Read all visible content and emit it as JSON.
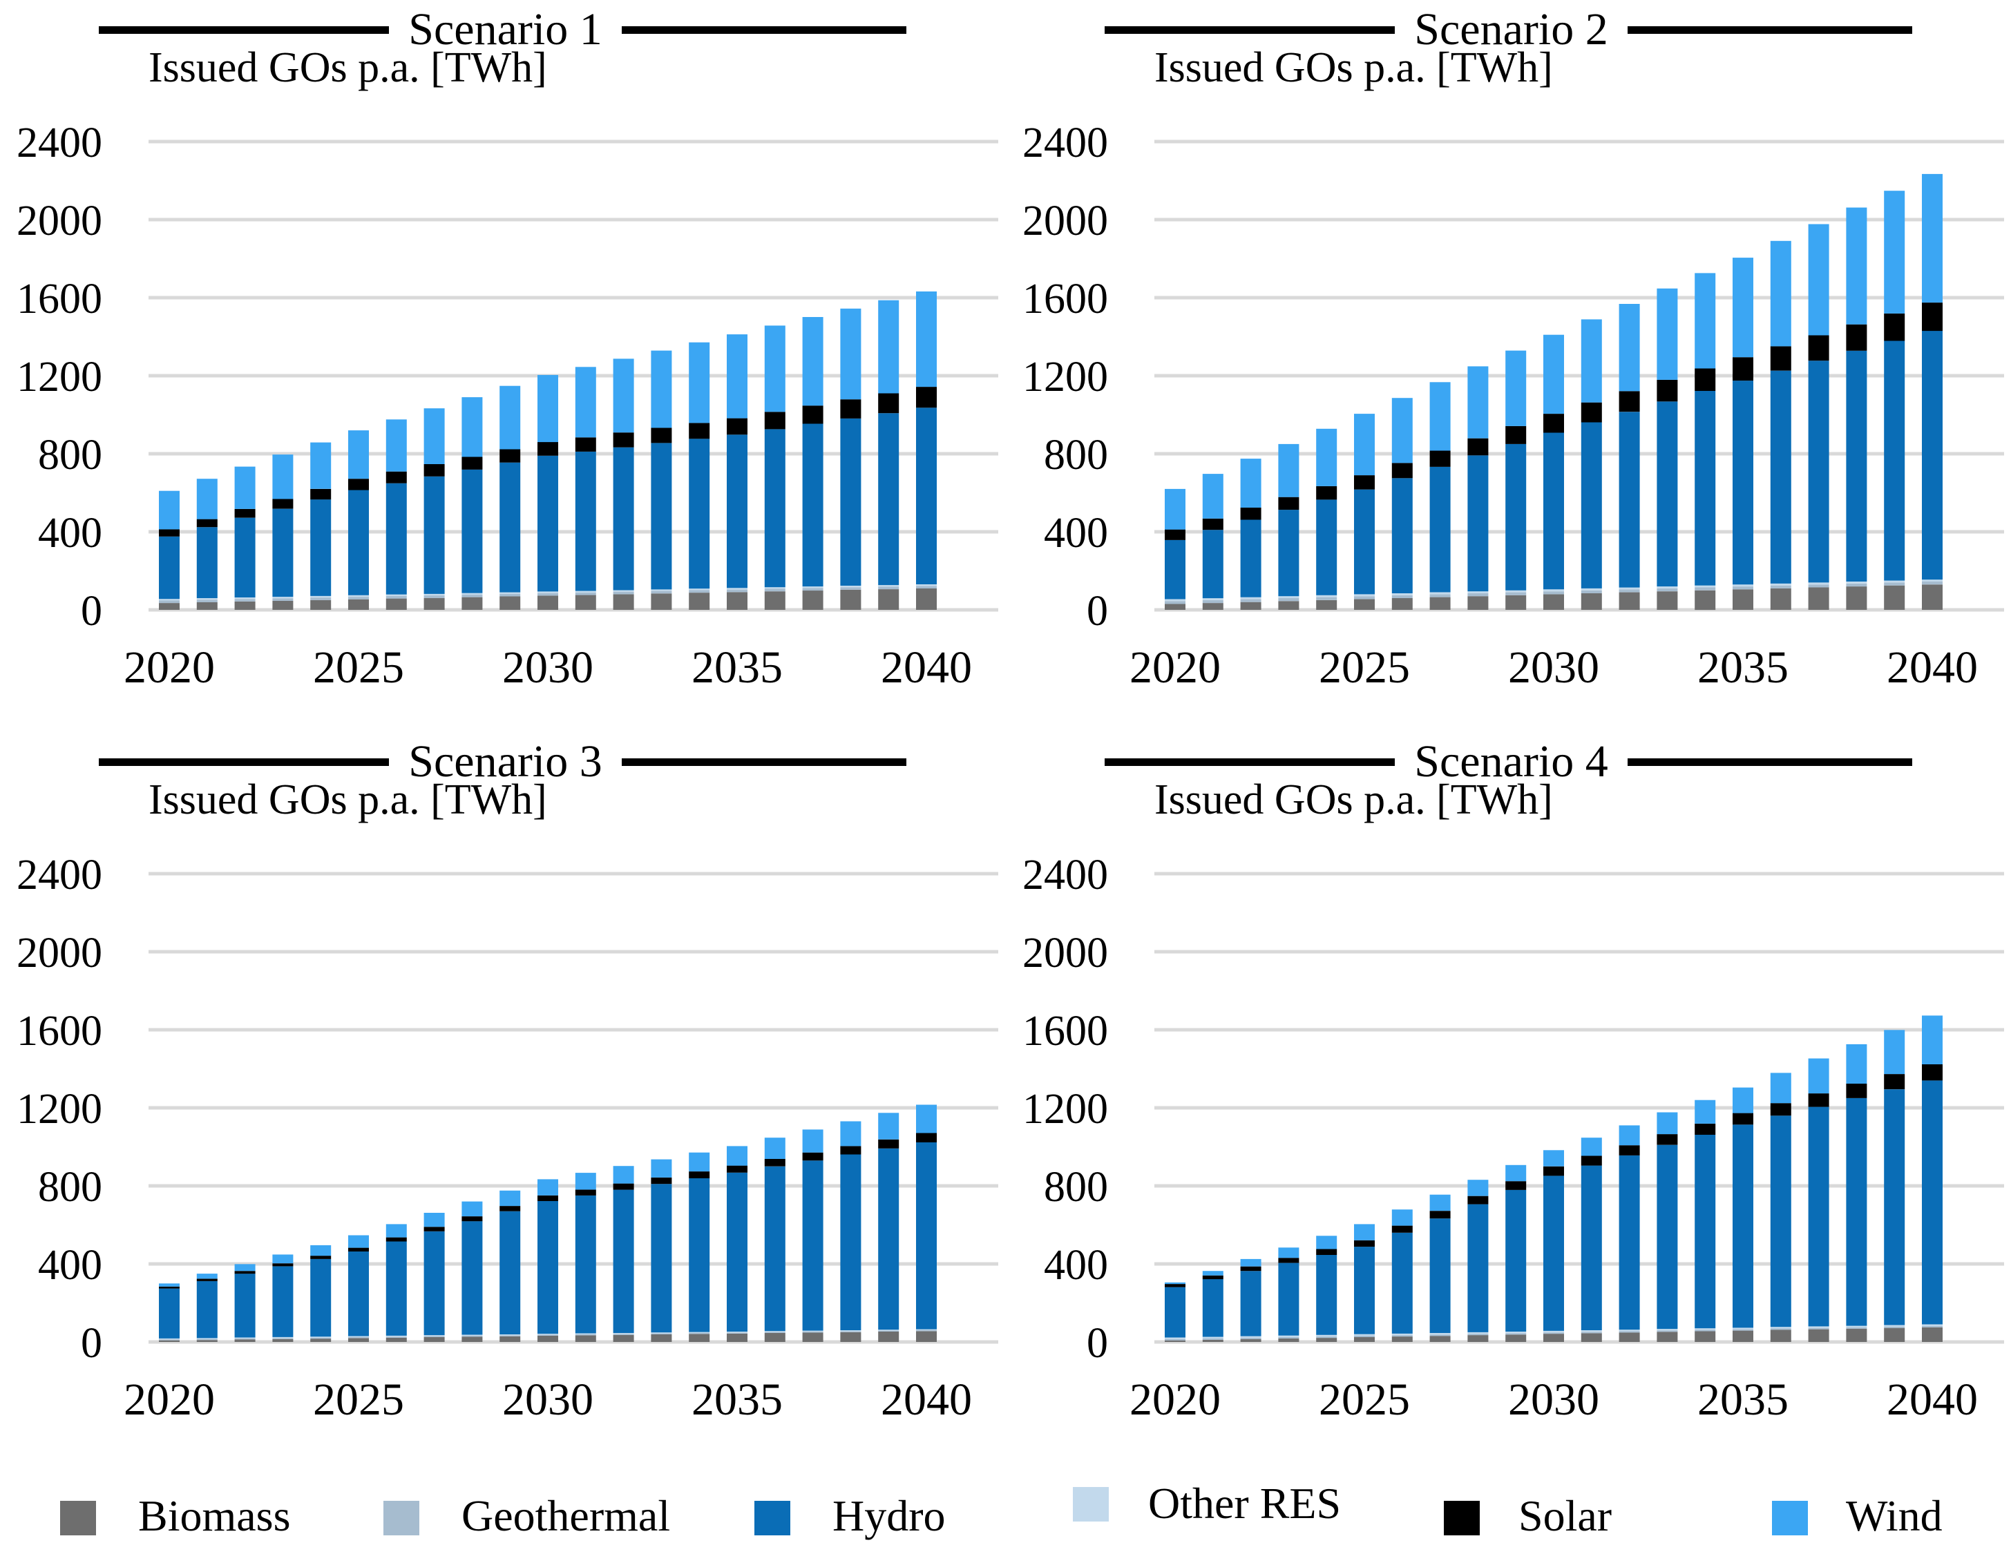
{
  "page": {
    "background": "#ffffff",
    "gridline_color": "#D9D9D9"
  },
  "legend": {
    "position": "bottom",
    "items": [
      {
        "label": "Biomass",
        "color": "#6E6E6E"
      },
      {
        "label": "Geothermal",
        "color": "#A6BCCF"
      },
      {
        "label": "Hydro",
        "color": "#0A6DB6"
      },
      {
        "label": "Other RES",
        "color": "#C2D9EC"
      },
      {
        "label": "Solar",
        "color": "#000000"
      },
      {
        "label": "Wind",
        "color": "#3BA6F3"
      }
    ]
  },
  "chart_data": [
    {
      "type": "bar",
      "stacked": true,
      "title": "Scenario 1",
      "ylabel": "Issued GOs p.a. [TWh]",
      "xlabel": "",
      "grid": true,
      "ylim": [
        0,
        2400
      ],
      "y_step": 400,
      "x": [
        2020,
        2021,
        2022,
        2023,
        2024,
        2025,
        2026,
        2027,
        2028,
        2029,
        2030,
        2031,
        2032,
        2033,
        2034,
        2035,
        2036,
        2037,
        2038,
        2039,
        2040
      ],
      "x_ticks": [
        2020,
        2025,
        2030,
        2035,
        2040
      ],
      "series": [
        {
          "name": "Biomass",
          "color": "#6E6E6E",
          "values": [
            35,
            39,
            43,
            46,
            50,
            54,
            58,
            61,
            65,
            69,
            73,
            76,
            80,
            84,
            88,
            91,
            95,
            99,
            103,
            106,
            110
          ]
        },
        {
          "name": "Geothermal",
          "color": "#A6BCCF",
          "values": [
            13,
            13,
            13,
            13,
            13,
            13,
            13,
            13,
            13,
            13,
            13,
            13,
            13,
            13,
            13,
            13,
            13,
            13,
            13,
            13,
            13
          ]
        },
        {
          "name": "Other RES",
          "color": "#C2D9EC",
          "values": [
            8,
            8,
            8,
            8,
            8,
            8,
            8,
            8,
            8,
            8,
            8,
            8,
            8,
            8,
            8,
            8,
            8,
            8,
            8,
            8,
            8
          ]
        },
        {
          "name": "Hydro",
          "color": "#0A6DB6",
          "values": [
            320,
            364,
            408,
            451,
            495,
            539,
            570,
            602,
            633,
            665,
            696,
            714,
            732,
            750,
            768,
            786,
            810,
            834,
            857,
            881,
            905
          ]
        },
        {
          "name": "Solar",
          "color": "#000000",
          "values": [
            37,
            41,
            45,
            50,
            54,
            58,
            60,
            63,
            65,
            68,
            70,
            73,
            76,
            78,
            81,
            84,
            89,
            93,
            98,
            102,
            107
          ]
        },
        {
          "name": "Wind",
          "color": "#3BA6F3",
          "values": [
            197,
            207,
            217,
            228,
            238,
            248,
            267,
            286,
            306,
            325,
            344,
            361,
            378,
            396,
            413,
            430,
            442,
            454,
            465,
            477,
            489
          ]
        }
      ]
    },
    {
      "type": "bar",
      "stacked": true,
      "title": "Scenario 2",
      "ylabel": "Issued GOs p.a. [TWh]",
      "xlabel": "",
      "grid": true,
      "ylim": [
        0,
        2400
      ],
      "y_step": 400,
      "x": [
        2020,
        2021,
        2022,
        2023,
        2024,
        2025,
        2026,
        2027,
        2028,
        2029,
        2030,
        2031,
        2032,
        2033,
        2034,
        2035,
        2036,
        2037,
        2038,
        2039,
        2040
      ],
      "x_ticks": [
        2020,
        2025,
        2030,
        2035,
        2040
      ],
      "series": [
        {
          "name": "Biomass",
          "color": "#6E6E6E",
          "values": [
            30,
            35,
            40,
            45,
            50,
            55,
            60,
            65,
            70,
            75,
            80,
            85,
            90,
            95,
            100,
            105,
            110,
            115,
            120,
            125,
            130
          ]
        },
        {
          "name": "Geothermal",
          "color": "#A6BCCF",
          "values": [
            15,
            15,
            15,
            15,
            15,
            15,
            15,
            15,
            15,
            15,
            15,
            15,
            15,
            15,
            15,
            15,
            15,
            15,
            15,
            15,
            15
          ]
        },
        {
          "name": "Other RES",
          "color": "#C2D9EC",
          "values": [
            10,
            10,
            10,
            10,
            10,
            10,
            10,
            10,
            10,
            10,
            10,
            10,
            10,
            10,
            10,
            10,
            10,
            10,
            10,
            10,
            10
          ]
        },
        {
          "name": "Hydro",
          "color": "#0A6DB6",
          "values": [
            303,
            350,
            397,
            443,
            490,
            537,
            590,
            643,
            697,
            750,
            803,
            851,
            900,
            948,
            997,
            1045,
            1091,
            1137,
            1183,
            1229,
            1275
          ]
        },
        {
          "name": "Solar",
          "color": "#000000",
          "values": [
            54,
            58,
            62,
            65,
            69,
            73,
            78,
            83,
            87,
            92,
            97,
            102,
            106,
            111,
            115,
            120,
            125,
            130,
            135,
            140,
            145
          ]
        },
        {
          "name": "Wind",
          "color": "#3BA6F3",
          "values": [
            208,
            229,
            251,
            272,
            294,
            315,
            333,
            351,
            369,
            387,
            405,
            426,
            447,
            468,
            489,
            510,
            540,
            570,
            599,
            629,
            659
          ]
        }
      ]
    },
    {
      "type": "bar",
      "stacked": true,
      "title": "Scenario 3",
      "ylabel": "Issued GOs p.a. [TWh]",
      "xlabel": "",
      "grid": true,
      "ylim": [
        0,
        2400
      ],
      "y_step": 400,
      "x": [
        2020,
        2021,
        2022,
        2023,
        2024,
        2025,
        2026,
        2027,
        2028,
        2029,
        2030,
        2031,
        2032,
        2033,
        2034,
        2035,
        2036,
        2037,
        2038,
        2039,
        2040
      ],
      "x_ticks": [
        2020,
        2025,
        2030,
        2035,
        2040
      ],
      "series": [
        {
          "name": "Biomass",
          "color": "#6E6E6E",
          "values": [
            8,
            10,
            13,
            15,
            17,
            20,
            22,
            25,
            27,
            29,
            32,
            34,
            36,
            39,
            41,
            43,
            46,
            48,
            50,
            53,
            55
          ]
        },
        {
          "name": "Geothermal",
          "color": "#A6BCCF",
          "values": [
            5,
            5,
            5,
            5,
            5,
            5,
            5,
            5,
            5,
            5,
            5,
            5,
            5,
            5,
            5,
            5,
            5,
            5,
            5,
            5,
            5
          ]
        },
        {
          "name": "Other RES",
          "color": "#C2D9EC",
          "values": [
            5,
            5,
            5,
            5,
            5,
            5,
            5,
            5,
            5,
            5,
            5,
            5,
            5,
            5,
            5,
            5,
            5,
            5,
            5,
            5,
            5
          ]
        },
        {
          "name": "Hydro",
          "color": "#0A6DB6",
          "values": [
            256,
            292,
            327,
            363,
            398,
            434,
            483,
            532,
            582,
            631,
            680,
            707,
            734,
            761,
            788,
            815,
            844,
            872,
            901,
            929,
            958
          ]
        },
        {
          "name": "Solar",
          "color": "#000000",
          "values": [
            10,
            12,
            14,
            15,
            17,
            19,
            21,
            23,
            25,
            27,
            29,
            30,
            32,
            33,
            35,
            36,
            38,
            41,
            43,
            46,
            48
          ]
        },
        {
          "name": "Wind",
          "color": "#3BA6F3",
          "values": [
            16,
            26,
            35,
            45,
            54,
            64,
            68,
            72,
            76,
            79,
            83,
            86,
            90,
            93,
            97,
            100,
            109,
            118,
            127,
            136,
            145
          ]
        }
      ]
    },
    {
      "type": "bar",
      "stacked": true,
      "title": "Scenario 4",
      "ylabel": "Issued GOs p.a. [TWh]",
      "xlabel": "",
      "grid": true,
      "ylim": [
        0,
        2400
      ],
      "y_step": 400,
      "x": [
        2020,
        2021,
        2022,
        2023,
        2024,
        2025,
        2026,
        2027,
        2028,
        2029,
        2030,
        2031,
        2032,
        2033,
        2034,
        2035,
        2036,
        2037,
        2038,
        2039,
        2040
      ],
      "x_ticks": [
        2020,
        2025,
        2030,
        2035,
        2040
      ],
      "series": [
        {
          "name": "Biomass",
          "color": "#6E6E6E",
          "values": [
            8,
            11,
            15,
            18,
            21,
            25,
            28,
            31,
            35,
            38,
            42,
            45,
            48,
            52,
            55,
            58,
            62,
            65,
            68,
            72,
            75
          ]
        },
        {
          "name": "Geothermal",
          "color": "#A6BCCF",
          "values": [
            7,
            7,
            7,
            7,
            7,
            7,
            7,
            7,
            7,
            7,
            7,
            7,
            7,
            7,
            7,
            7,
            7,
            7,
            7,
            7,
            7
          ]
        },
        {
          "name": "Other RES",
          "color": "#C2D9EC",
          "values": [
            8,
            8,
            8,
            8,
            8,
            8,
            8,
            8,
            8,
            8,
            8,
            8,
            8,
            8,
            8,
            8,
            8,
            8,
            8,
            8,
            8
          ]
        },
        {
          "name": "Hydro",
          "color": "#0A6DB6",
          "values": [
            258,
            296,
            334,
            372,
            410,
            448,
            517,
            587,
            656,
            726,
            795,
            844,
            893,
            943,
            992,
            1041,
            1083,
            1125,
            1167,
            1208,
            1250
          ]
        },
        {
          "name": "Solar",
          "color": "#000000",
          "values": [
            16,
            19,
            23,
            26,
            30,
            33,
            36,
            39,
            42,
            45,
            48,
            50,
            52,
            55,
            57,
            59,
            64,
            69,
            74,
            78,
            83
          ]
        },
        {
          "name": "Wind",
          "color": "#3BA6F3",
          "values": [
            8,
            23,
            38,
            53,
            68,
            83,
            83,
            83,
            83,
            83,
            83,
            93,
            102,
            112,
            121,
            131,
            155,
            179,
            202,
            226,
            250
          ]
        }
      ]
    }
  ]
}
